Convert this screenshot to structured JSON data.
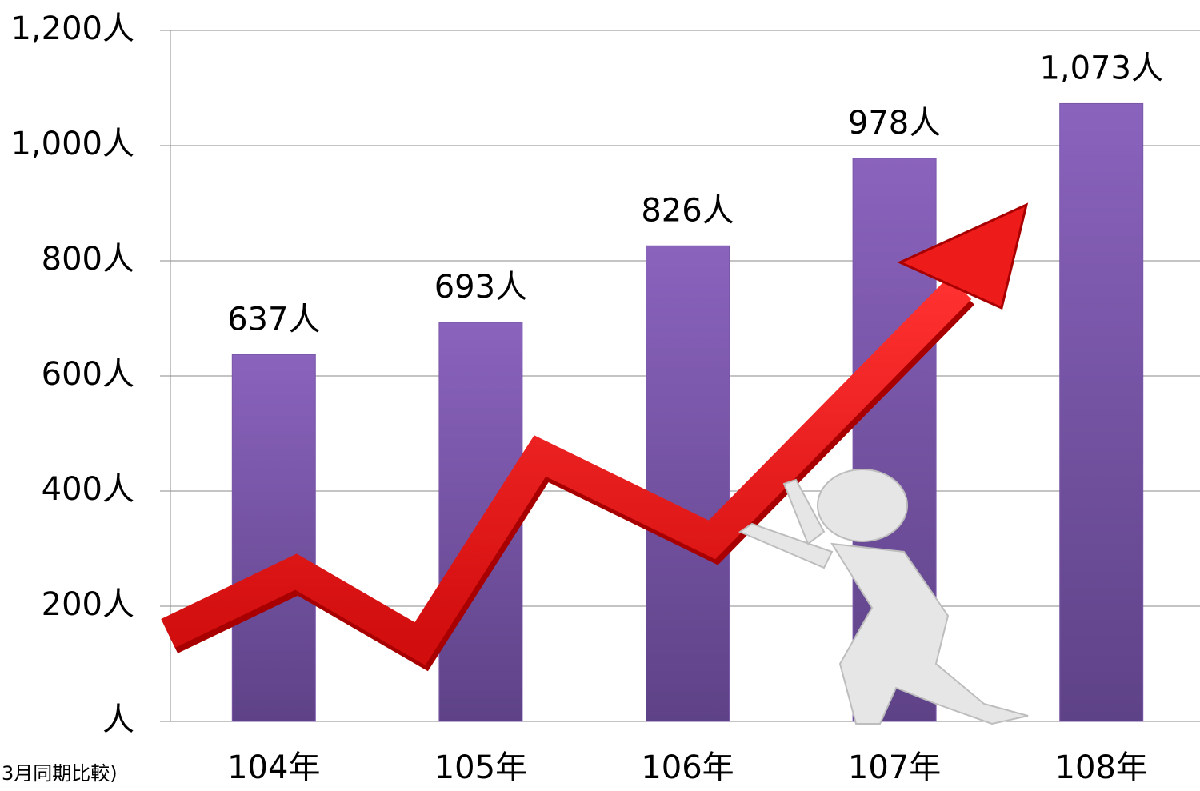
{
  "chart_data": {
    "type": "bar",
    "categories": [
      "104年",
      "105年",
      "106年",
      "107年",
      "108年"
    ],
    "values": [
      637,
      693,
      826,
      978,
      1073
    ],
    "value_labels": [
      "637人",
      "693人",
      "826人",
      "978人",
      "1,073人"
    ],
    "color": "#7b58a8",
    "ylim": [
      0,
      1200
    ],
    "yticks": [
      {
        "value": 0,
        "label": "人"
      },
      {
        "value": 200,
        "label": "200人"
      },
      {
        "value": 400,
        "label": "400人"
      },
      {
        "value": 600,
        "label": "600人"
      },
      {
        "value": 800,
        "label": "800人"
      },
      {
        "value": 1000,
        "label": "1,000人"
      },
      {
        "value": 1200,
        "label": "1,200人"
      }
    ],
    "grid": true,
    "footnote": "3月同期比較)"
  }
}
